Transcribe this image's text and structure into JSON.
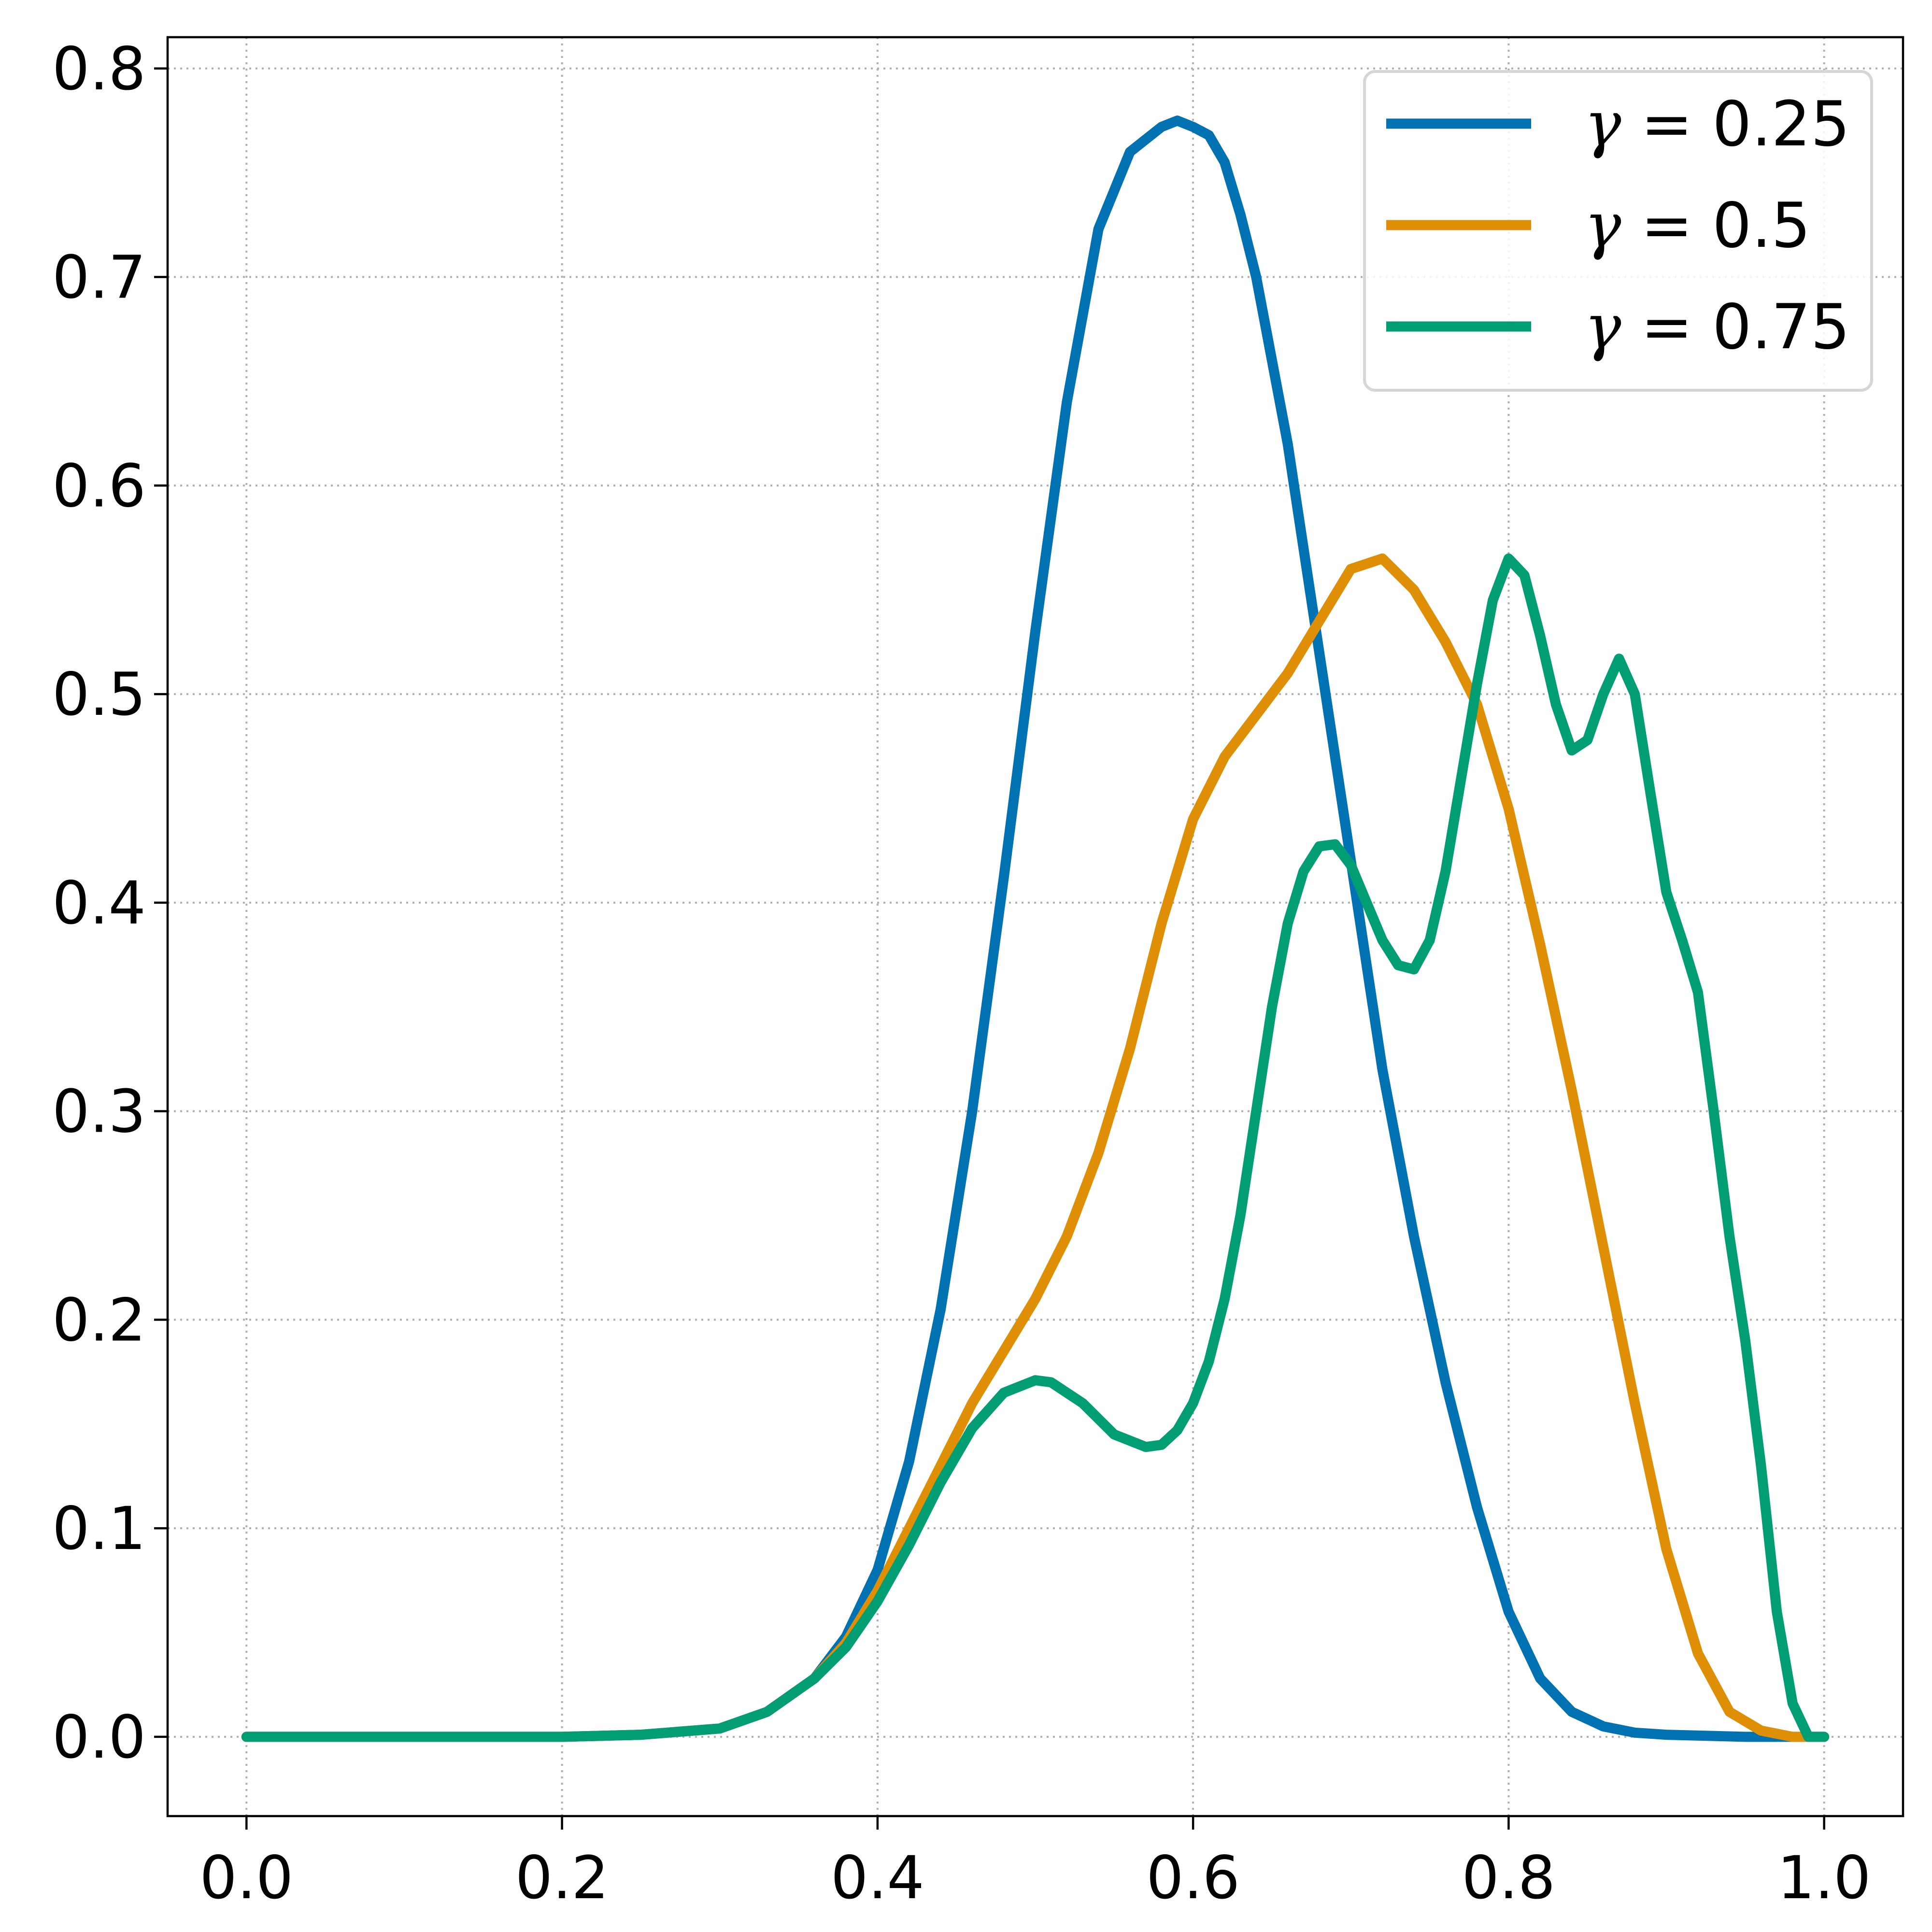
{
  "chart_data": {
    "type": "line",
    "title": "",
    "xlabel": "",
    "ylabel": "",
    "xlim": [
      -0.05,
      1.05
    ],
    "ylim": [
      -0.038,
      0.815
    ],
    "xticks": [
      0.0,
      0.2,
      0.4,
      0.6,
      0.8,
      1.0
    ],
    "xtick_labels": [
      "0.0",
      "0.2",
      "0.4",
      "0.6",
      "0.8",
      "1.0"
    ],
    "yticks": [
      0.0,
      0.1,
      0.2,
      0.3,
      0.4,
      0.5,
      0.6,
      0.7,
      0.8
    ],
    "ytick_labels": [
      "0.0",
      "0.1",
      "0.2",
      "0.3",
      "0.4",
      "0.5",
      "0.6",
      "0.7",
      "0.8"
    ],
    "grid": true,
    "legend_position": "top-right",
    "series": [
      {
        "name": "γ = 0.25",
        "legend": {
          "symbol": "γ",
          "equals": "=",
          "value": "0.25"
        },
        "color": "#0072b2",
        "x": [
          0.0,
          0.1,
          0.2,
          0.25,
          0.3,
          0.33,
          0.36,
          0.38,
          0.4,
          0.42,
          0.44,
          0.46,
          0.48,
          0.5,
          0.52,
          0.54,
          0.56,
          0.58,
          0.59,
          0.6,
          0.61,
          0.62,
          0.63,
          0.64,
          0.66,
          0.68,
          0.7,
          0.72,
          0.74,
          0.76,
          0.78,
          0.8,
          0.82,
          0.84,
          0.86,
          0.88,
          0.9,
          0.95,
          1.0
        ],
        "y": [
          0.0,
          0.0,
          0.0,
          0.001,
          0.004,
          0.012,
          0.028,
          0.048,
          0.08,
          0.132,
          0.205,
          0.3,
          0.412,
          0.53,
          0.64,
          0.723,
          0.76,
          0.772,
          0.775,
          0.772,
          0.768,
          0.755,
          0.73,
          0.7,
          0.62,
          0.52,
          0.42,
          0.32,
          0.24,
          0.17,
          0.11,
          0.06,
          0.028,
          0.012,
          0.005,
          0.002,
          0.001,
          0.0,
          0.0
        ]
      },
      {
        "name": "γ = 0.5",
        "legend": {
          "symbol": "γ",
          "equals": "=",
          "value": "0.5"
        },
        "color": "#de8f05",
        "x": [
          0.0,
          0.1,
          0.2,
          0.25,
          0.3,
          0.33,
          0.36,
          0.38,
          0.4,
          0.42,
          0.44,
          0.46,
          0.48,
          0.5,
          0.52,
          0.54,
          0.56,
          0.58,
          0.6,
          0.62,
          0.64,
          0.66,
          0.68,
          0.7,
          0.72,
          0.74,
          0.76,
          0.78,
          0.8,
          0.82,
          0.84,
          0.86,
          0.88,
          0.9,
          0.92,
          0.94,
          0.96,
          0.98,
          1.0
        ],
        "y": [
          0.0,
          0.0,
          0.0,
          0.001,
          0.004,
          0.012,
          0.028,
          0.045,
          0.07,
          0.1,
          0.13,
          0.16,
          0.185,
          0.21,
          0.24,
          0.28,
          0.33,
          0.39,
          0.44,
          0.47,
          0.49,
          0.51,
          0.535,
          0.56,
          0.565,
          0.55,
          0.525,
          0.495,
          0.445,
          0.38,
          0.31,
          0.235,
          0.16,
          0.09,
          0.04,
          0.012,
          0.003,
          0.0,
          0.0
        ]
      },
      {
        "name": "γ = 0.75",
        "legend": {
          "symbol": "γ",
          "equals": "=",
          "value": "0.75"
        },
        "color": "#029e73",
        "x": [
          0.0,
          0.1,
          0.2,
          0.25,
          0.3,
          0.33,
          0.36,
          0.38,
          0.4,
          0.42,
          0.44,
          0.46,
          0.48,
          0.5,
          0.51,
          0.53,
          0.55,
          0.57,
          0.58,
          0.59,
          0.6,
          0.61,
          0.62,
          0.63,
          0.64,
          0.65,
          0.66,
          0.67,
          0.68,
          0.69,
          0.7,
          0.71,
          0.72,
          0.73,
          0.74,
          0.75,
          0.76,
          0.77,
          0.78,
          0.79,
          0.8,
          0.81,
          0.82,
          0.83,
          0.84,
          0.85,
          0.86,
          0.87,
          0.88,
          0.89,
          0.9,
          0.91,
          0.92,
          0.93,
          0.94,
          0.95,
          0.96,
          0.97,
          0.98,
          0.99,
          1.0
        ],
        "y": [
          0.0,
          0.0,
          0.0,
          0.001,
          0.004,
          0.012,
          0.028,
          0.043,
          0.065,
          0.092,
          0.122,
          0.148,
          0.165,
          0.171,
          0.17,
          0.16,
          0.145,
          0.139,
          0.14,
          0.147,
          0.16,
          0.18,
          0.21,
          0.25,
          0.3,
          0.35,
          0.39,
          0.415,
          0.427,
          0.428,
          0.418,
          0.4,
          0.382,
          0.37,
          0.368,
          0.382,
          0.415,
          0.46,
          0.505,
          0.545,
          0.565,
          0.557,
          0.528,
          0.495,
          0.473,
          0.478,
          0.5,
          0.517,
          0.5,
          0.452,
          0.405,
          0.382,
          0.357,
          0.3,
          0.24,
          0.19,
          0.13,
          0.06,
          0.016,
          0.0,
          0.0
        ]
      }
    ]
  }
}
